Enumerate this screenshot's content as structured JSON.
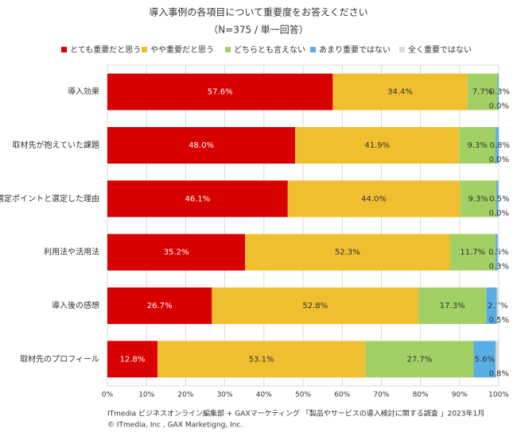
{
  "chart_data": {
    "type": "stacked-bar-horizontal",
    "title": "導入事例の各項目について重要度をお答えください",
    "subtitle": "（N=375 / 単一回答）",
    "categories": [
      "導入効果",
      "取材先が抱えていた課題",
      "選定ポイントと選定した理由",
      "利用法や活用法",
      "導入後の感想",
      "取材先のプロフィール"
    ],
    "series": [
      {
        "name": "とても重要だと思う",
        "color": "#d90000",
        "values": [
          57.6,
          48.0,
          46.1,
          35.2,
          26.7,
          12.8
        ],
        "value_labels": [
          "57.6%",
          "48.0%",
          "46.1%",
          "35.2%",
          "26.7%",
          "12.8%"
        ]
      },
      {
        "name": "やや重要だと思う",
        "color": "#f0bf30",
        "values": [
          34.4,
          41.9,
          44.0,
          52.3,
          52.8,
          53.1
        ],
        "value_labels": [
          "34.4%",
          "41.9%",
          "44.0%",
          "52.3%",
          "52.8%",
          "53.1%"
        ]
      },
      {
        "name": "どちらとも言えない",
        "color": "#a3d065",
        "values": [
          7.7,
          9.3,
          9.3,
          11.7,
          17.3,
          27.7
        ],
        "value_labels": [
          "7.7%",
          "9.3%",
          "9.3%",
          "11.7%",
          "17.3%",
          "27.7%"
        ]
      },
      {
        "name": "あまり重要ではない",
        "color": "#5aaee6",
        "values": [
          0.3,
          0.8,
          0.5,
          0.5,
          2.7,
          5.6
        ],
        "value_labels": [
          "0.3%",
          "0.8%",
          "0.5%",
          "0.5%",
          "2.7%",
          "5.6%"
        ]
      },
      {
        "name": "全く重要ではない",
        "color": "#d9d9d9",
        "values": [
          0.0,
          0.0,
          0.0,
          0.3,
          0.5,
          0.8
        ],
        "value_labels": [
          "0.0%",
          "0.0%",
          "0.0%",
          "0.3%",
          "0.5%",
          "0.8%"
        ]
      }
    ],
    "xlim": [
      0,
      100
    ],
    "xticks": [
      {
        "value": 0,
        "label": "0%"
      },
      {
        "value": 10,
        "label": "10%"
      },
      {
        "value": 20,
        "label": "20%"
      },
      {
        "value": 30,
        "label": "30%"
      },
      {
        "value": 40,
        "label": "40%"
      },
      {
        "value": 50,
        "label": "50%"
      },
      {
        "value": 60,
        "label": "60%"
      },
      {
        "value": 70,
        "label": "70%"
      },
      {
        "value": 80,
        "label": "80%"
      },
      {
        "value": 90,
        "label": "90%"
      },
      {
        "value": 100,
        "label": "100%"
      }
    ],
    "grid": true,
    "footnotes": [
      "ITmedia ビジネスオンライン編集部 + GAXマーケティング 「製品やサービスの導入検討に関する調査 」2023年1月",
      "© ITmedia, Inc , GAX Marketigng, Inc."
    ]
  }
}
